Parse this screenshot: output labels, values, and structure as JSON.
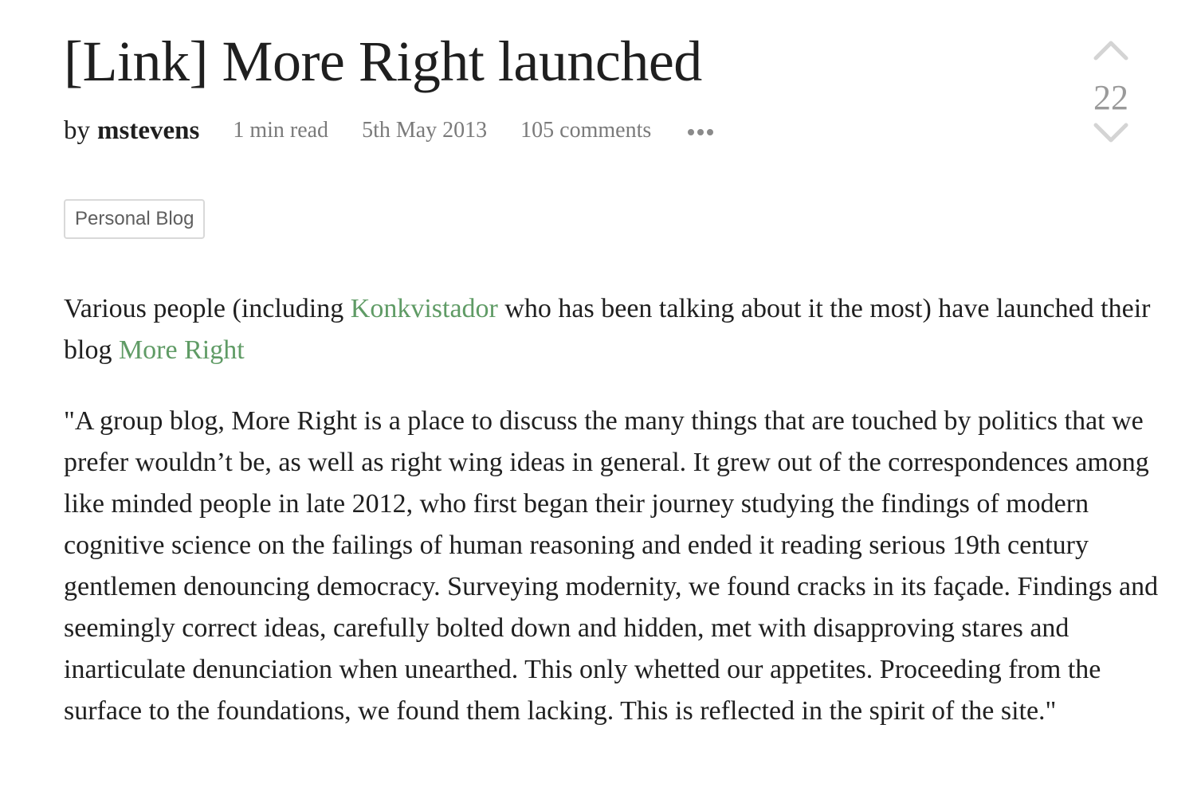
{
  "post": {
    "title": "[Link] More Right launched",
    "by_label": "by",
    "author": "mstevens",
    "read_time": "1 min read",
    "date": "5th May 2013",
    "comments": "105 comments",
    "score": "22",
    "tag": "Personal Blog"
  },
  "content": {
    "p1_before": "Various people (including ",
    "p1_link1": "Konkvistador",
    "p1_middle": " who has been talking about it the most) have launched their blog ",
    "p1_link2": "More Right",
    "p2": "\"A group blog, More Right is a place to discuss the many things that are touched by politics that we prefer wouldn’t be, as well as right wing ideas in general. It grew out of the correspondences among like minded people in late 2012, who first began their journey studying the findings of modern cognitive science on the failings of human reasoning and ended it reading serious 19th century gentlemen denouncing democracy. Surveying modernity, we found cracks in its façade. Findings and seemingly correct ideas, carefully bolted down and hidden, met with disapproving stares and inarticulate denunciation when unearthed. This only whetted our appetites. Proceeding from the surface to the foundations, we found them lacking. This is reflected in the spirit of the site.\""
  },
  "icons": {
    "upvote": "chevron-up-icon",
    "downvote": "chevron-down-icon",
    "more": "more-horizontal-icon"
  },
  "colors": {
    "link": "#5f9b65",
    "meta": "#7a7a7a",
    "score": "#9a9a9a",
    "tag_border": "#d9d9d9"
  }
}
